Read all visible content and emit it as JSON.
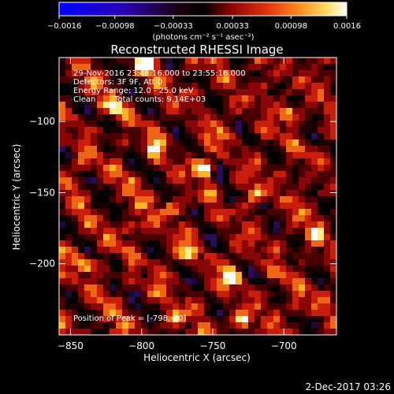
{
  "colorbar": {
    "tick_labels": [
      "-0.0016",
      "-0.00098",
      "-0.00033",
      "0.00033",
      "0.00098",
      "0.0016"
    ],
    "min": -0.0016,
    "max": 0.0016,
    "units_label": "(photons cm⁻² s⁻¹ asec⁻²)"
  },
  "chart_data": {
    "type": "heatmap",
    "title": "Reconstructed RHESSI Image",
    "xlabel": "Heliocentric X (arcsec)",
    "ylabel": "Heliocentric Y (arcsec)",
    "xlim": [
      -858,
      -663
    ],
    "ylim": [
      -250,
      -55
    ],
    "x_ticks": [
      -850,
      -800,
      -750,
      -700
    ],
    "y_ticks": [
      -100,
      -150,
      -200
    ],
    "x_tick_labels": [
      "−850",
      "−800",
      "−750",
      "−700"
    ],
    "y_tick_labels": [
      "−100",
      "−150",
      "−200"
    ],
    "colormap": [
      "#000000",
      "#1a0000",
      "#4a0000",
      "#8a0505",
      "#c81e0a",
      "#ee6614",
      "#ffb428",
      "#ffee88",
      "#ffffff"
    ],
    "bright_sources": [
      {
        "x": -798,
        "y": -60,
        "intensity": 0.0016
      },
      {
        "x": -755,
        "y": -133,
        "intensity": 0.0014
      },
      {
        "x": -737,
        "y": -209,
        "intensity": 0.0014
      },
      {
        "x": -767,
        "y": -192,
        "intensity": 0.0011
      },
      {
        "x": -818,
        "y": -90,
        "intensity": 0.001
      },
      {
        "x": -698,
        "y": -95,
        "intensity": 0.001
      },
      {
        "x": -790,
        "y": -118,
        "intensity": 0.0009
      },
      {
        "x": -808,
        "y": -175,
        "intensity": 0.0009
      },
      {
        "x": -728,
        "y": -240,
        "intensity": 0.001
      },
      {
        "x": -678,
        "y": -180,
        "intensity": 0.0008
      },
      {
        "x": -840,
        "y": -200,
        "intensity": 0.0008
      },
      {
        "x": -720,
        "y": -150,
        "intensity": 0.0008
      },
      {
        "x": -775,
        "y": -240,
        "intensity": 0.0007
      },
      {
        "x": -690,
        "y": -230,
        "intensity": 0.0007
      },
      {
        "x": -845,
        "y": -130,
        "intensity": 0.0006
      },
      {
        "x": -780,
        "y": -160,
        "intensity": 0.0007
      }
    ],
    "info": {
      "time_range": "29-Nov-2016 23:48:16.000 to 23:55:16.000",
      "detectors": "Detectors: 3F 9F, Att 0",
      "energy": "Energy Range: 12.0 - 25.0 keV",
      "method": "Clean",
      "total_counts": "Total counts: 9.14E+03",
      "peak": "Position of Peak = [-798,-60]"
    }
  },
  "footer": {
    "timestamp": "2-Dec-2017 03:26"
  }
}
